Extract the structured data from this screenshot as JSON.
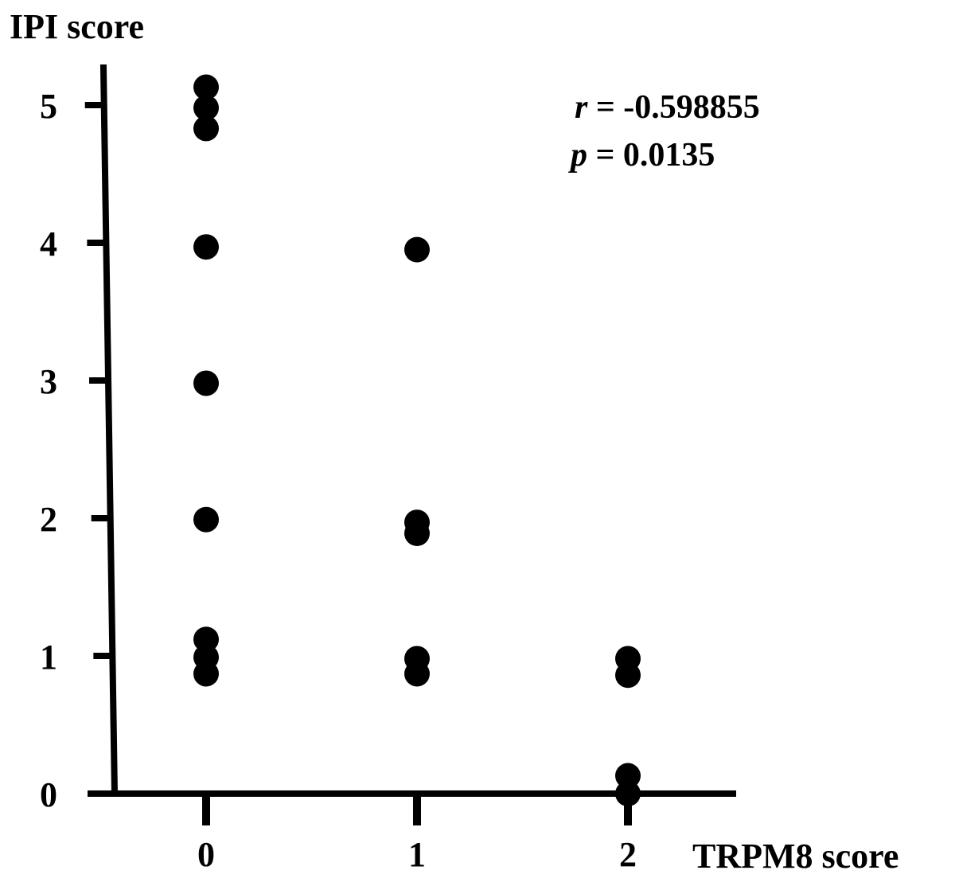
{
  "chart_data": {
    "type": "scatter",
    "title": "",
    "xlabel": "TRPM8 score",
    "ylabel": "IPI score",
    "x_ticks": [
      "0",
      "1",
      "2"
    ],
    "y_ticks": [
      "0",
      "1",
      "2",
      "3",
      "4",
      "5"
    ],
    "xlim": [
      -0.5,
      2.5
    ],
    "ylim": [
      0,
      5.25
    ],
    "grid": false,
    "legend": "none",
    "marker_color": "#000000",
    "annotation": {
      "r_symbol": "r",
      "r_text": " = -0.598855",
      "p_symbol": "p",
      "p_text": " = 0.0135"
    },
    "points": [
      {
        "x": 0,
        "y": 5.13
      },
      {
        "x": 0,
        "y": 4.98
      },
      {
        "x": 0,
        "y": 4.83
      },
      {
        "x": 0,
        "y": 3.97
      },
      {
        "x": 0,
        "y": 2.98
      },
      {
        "x": 0,
        "y": 1.99
      },
      {
        "x": 0,
        "y": 1.12
      },
      {
        "x": 0,
        "y": 0.99
      },
      {
        "x": 0,
        "y": 0.87
      },
      {
        "x": 1,
        "y": 3.95
      },
      {
        "x": 1,
        "y": 1.97
      },
      {
        "x": 1,
        "y": 1.89
      },
      {
        "x": 1,
        "y": 0.98
      },
      {
        "x": 1,
        "y": 0.87
      },
      {
        "x": 2,
        "y": 0.98
      },
      {
        "x": 2,
        "y": 0.86
      },
      {
        "x": 2,
        "y": 0.13
      },
      {
        "x": 2,
        "y": 0.0
      }
    ]
  }
}
